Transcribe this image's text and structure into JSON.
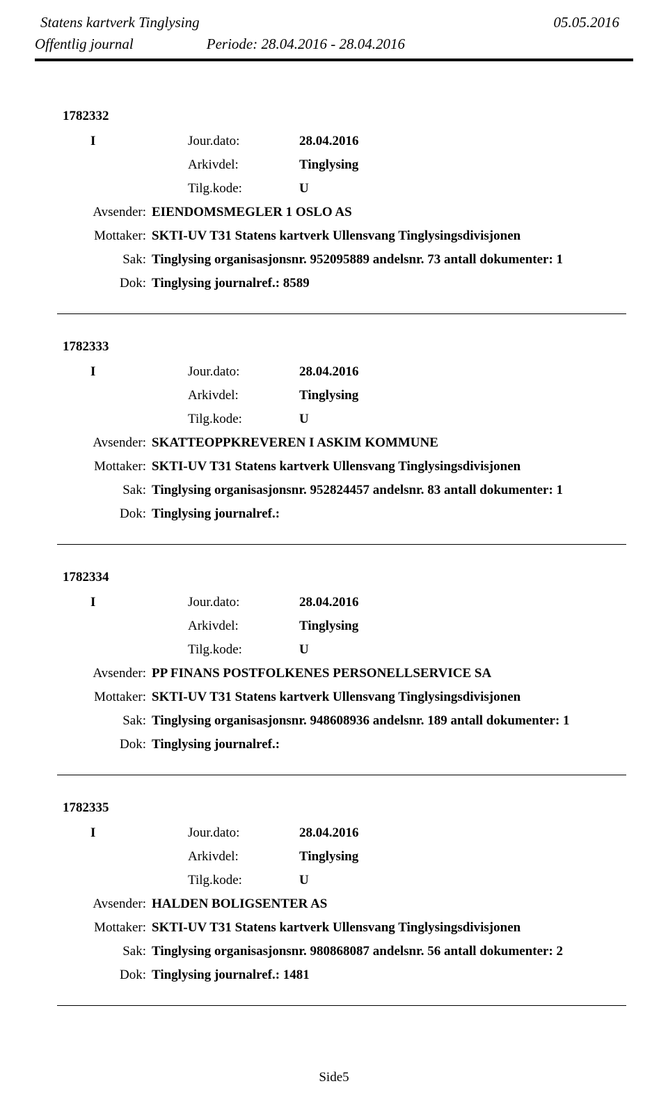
{
  "header": {
    "title": "Statens kartverk Tinglysing",
    "date": "05.05.2016",
    "journal": "Offentlig journal",
    "period_label": "Periode: 28.04.2016 - 28.04.2016"
  },
  "labels": {
    "jour_dato": "Jour.dato:",
    "arkivdel": "Arkivdel:",
    "tilg_kode": "Tilg.kode:",
    "avsender": "Avsender:",
    "mottaker": "Mottaker:",
    "sak": "Sak:",
    "dok": "Dok:"
  },
  "entries": [
    {
      "id": "1782332",
      "type": "I",
      "jour_dato": "28.04.2016",
      "arkivdel": "Tinglysing",
      "tilg_kode": "U",
      "avsender": "EIENDOMSMEGLER 1 OSLO AS",
      "mottaker": "SKTI-UV T31 Statens kartverk Ullensvang Tinglysingsdivisjonen",
      "sak": "Tinglysing organisasjonsnr. 952095889 andelsnr. 73 antall dokumenter: 1",
      "dok": "Tinglysing journalref.: 8589"
    },
    {
      "id": "1782333",
      "type": "I",
      "jour_dato": "28.04.2016",
      "arkivdel": "Tinglysing",
      "tilg_kode": "U",
      "avsender": "SKATTEOPPKREVEREN I ASKIM KOMMUNE",
      "mottaker": "SKTI-UV T31 Statens kartverk Ullensvang Tinglysingsdivisjonen",
      "sak": "Tinglysing organisasjonsnr. 952824457 andelsnr. 83 antall dokumenter: 1",
      "dok": "Tinglysing journalref.:"
    },
    {
      "id": "1782334",
      "type": "I",
      "jour_dato": "28.04.2016",
      "arkivdel": "Tinglysing",
      "tilg_kode": "U",
      "avsender": "PP FINANS POSTFOLKENES PERSONELLSERVICE SA",
      "mottaker": "SKTI-UV T31 Statens kartverk Ullensvang Tinglysingsdivisjonen",
      "sak": "Tinglysing organisasjonsnr. 948608936 andelsnr. 189 antall dokumenter: 1",
      "dok": "Tinglysing journalref.:"
    },
    {
      "id": "1782335",
      "type": "I",
      "jour_dato": "28.04.2016",
      "arkivdel": "Tinglysing",
      "tilg_kode": "U",
      "avsender": "HALDEN BOLIGSENTER AS",
      "mottaker": "SKTI-UV T31 Statens kartverk Ullensvang Tinglysingsdivisjonen",
      "sak": "Tinglysing organisasjonsnr. 980868087 andelsnr. 56 antall dokumenter: 2",
      "dok": "Tinglysing journalref.: 1481"
    }
  ],
  "footer": {
    "page": "Side5"
  }
}
